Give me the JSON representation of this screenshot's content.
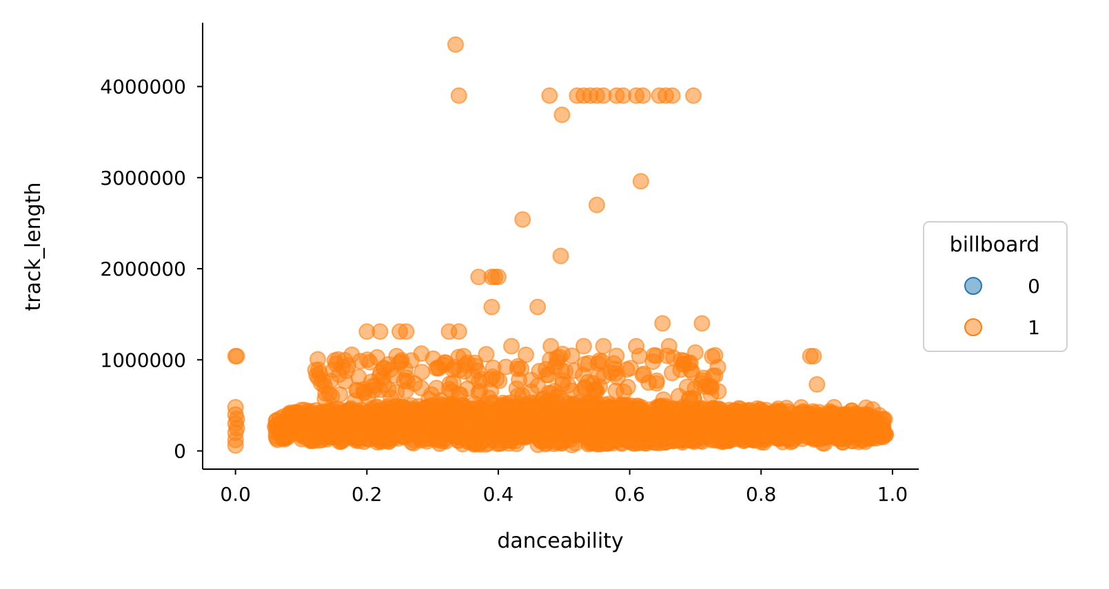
{
  "chart_data": {
    "type": "scatter",
    "title": "",
    "xlabel": "danceability",
    "ylabel": "track_length",
    "xlim": [
      -0.05,
      1.04
    ],
    "ylim": [
      -200000,
      4700000
    ],
    "x_ticks": [
      "0.0",
      "0.2",
      "0.4",
      "0.6",
      "0.8",
      "1.0"
    ],
    "x_tick_values": [
      0.0,
      0.2,
      0.4,
      0.6,
      0.8,
      1.0
    ],
    "y_ticks": [
      "0",
      "1000000",
      "2000000",
      "3000000",
      "4000000"
    ],
    "y_tick_values": [
      0,
      1000000,
      2000000,
      3000000,
      4000000
    ],
    "grid": false,
    "legend": {
      "title": "billboard",
      "placement": "center-right outside",
      "entries": [
        {
          "label": "0",
          "color": "#1f77b4"
        },
        {
          "label": "1",
          "color": "#ff7f0e"
        }
      ]
    },
    "series": [
      {
        "name": "0",
        "color": "#1f77b4",
        "points": []
      },
      {
        "name": "1",
        "color": "#ff7f0e",
        "points": [
          [
            0.335,
            4460000
          ],
          [
            0.34,
            3900000
          ],
          [
            0.478,
            3900000
          ],
          [
            0.497,
            3690000
          ],
          [
            0.52,
            3900000
          ],
          [
            0.53,
            3900000
          ],
          [
            0.54,
            3900000
          ],
          [
            0.55,
            3900000
          ],
          [
            0.56,
            3900000
          ],
          [
            0.58,
            3900000
          ],
          [
            0.59,
            3900000
          ],
          [
            0.61,
            3900000
          ],
          [
            0.62,
            3900000
          ],
          [
            0.645,
            3900000
          ],
          [
            0.655,
            3900000
          ],
          [
            0.665,
            3900000
          ],
          [
            0.697,
            3900000
          ],
          [
            0.617,
            2960000
          ],
          [
            0.55,
            2700000
          ],
          [
            0.437,
            2540000
          ],
          [
            0.495,
            2140000
          ],
          [
            0.37,
            1910000
          ],
          [
            0.39,
            1910000
          ],
          [
            0.395,
            1910000
          ],
          [
            0.4,
            1910000
          ],
          [
            0.39,
            1580000
          ],
          [
            0.46,
            1580000
          ],
          [
            0.65,
            1400000
          ],
          [
            0.71,
            1400000
          ],
          [
            0.0,
            1040000
          ],
          [
            0.002,
            1040000
          ],
          [
            0.875,
            1040000
          ],
          [
            0.88,
            1040000
          ],
          [
            0.885,
            730000
          ],
          [
            0.325,
            1310000
          ],
          [
            0.34,
            1310000
          ],
          [
            0.2,
            1310000
          ],
          [
            0.22,
            1310000
          ],
          [
            0.25,
            1310000
          ],
          [
            0.26,
            1310000
          ],
          [
            0.42,
            1150000
          ],
          [
            0.48,
            1150000
          ],
          [
            0.53,
            1150000
          ],
          [
            0.56,
            1150000
          ],
          [
            0.61,
            1150000
          ],
          [
            0.66,
            1150000
          ],
          [
            0.7,
            1080000
          ],
          [
            0.73,
            1050000
          ],
          [
            0.0,
            480000
          ],
          [
            0.0,
            400000
          ],
          [
            0.0,
            300000
          ],
          [
            0.0,
            200000
          ],
          [
            0.0,
            120000
          ],
          [
            0.0,
            60000
          ],
          [
            0.002,
            250000
          ],
          [
            0.002,
            350000
          ]
        ]
      }
    ]
  }
}
